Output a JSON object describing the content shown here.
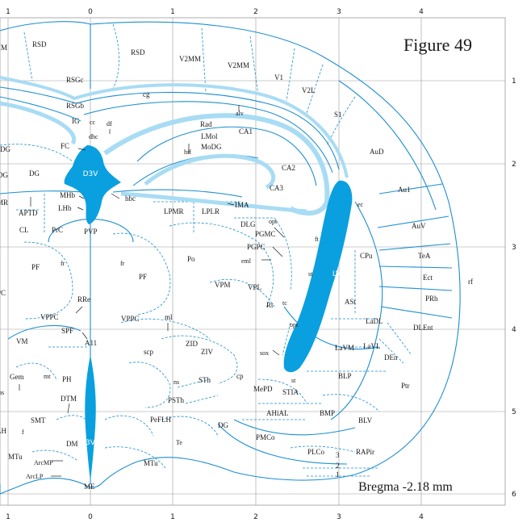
{
  "figure": {
    "title": "Figure 49",
    "bregma": "Bregma -2.18 mm"
  },
  "axes": {
    "top_ticks": [
      "1",
      "0",
      "1",
      "2",
      "3",
      "4"
    ],
    "bottom_ticks": [
      "1",
      "0",
      "1",
      "2",
      "3",
      "4"
    ],
    "right_ticks": [
      "1",
      "2",
      "3",
      "4",
      "5",
      "6"
    ]
  },
  "colors": {
    "ventricle": "#0aa0e0",
    "tract": "#a8dcf4",
    "outline": "#1c8fd0",
    "grid": "#9a9a9a"
  },
  "ventricles": {
    "d3v": "D3V",
    "lv": "LV",
    "v3": "3V"
  },
  "regions": {
    "cortex": [
      "IM",
      "RSD",
      "RSD",
      "V2MM",
      "V2MM",
      "V1",
      "V2L",
      "S1",
      "AuD",
      "Au1",
      "AuV",
      "TeA",
      "Ect",
      "PRh",
      "DLEnt",
      "rf"
    ],
    "hippocampus": [
      "RSGc",
      "cg",
      "RSGb",
      "IG",
      "cc",
      "df",
      "dhc",
      "alv",
      "Rad",
      "LMol",
      "MoDG",
      "CA1",
      "hif",
      "CA2",
      "CA3",
      "FC",
      "DG",
      "DG",
      "DG"
    ],
    "thalamus": [
      "MHb",
      "LHb",
      "hbc",
      "APTD",
      "CL",
      "PrC",
      "PVP",
      "PF",
      "fr",
      "fr",
      "PF",
      "Po",
      "LPMR",
      "LPLR",
      "IMA",
      "DLG",
      "opt",
      "PGMC",
      "PGPC",
      "ft",
      "eml",
      "VPM",
      "VPL",
      "Rt",
      "tc",
      "MR",
      "PC"
    ],
    "striatum": [
      "ec",
      "CPu",
      "st",
      "ASt",
      "LaDL",
      "LaVM",
      "LaVL",
      "DEn",
      "opt",
      "sox",
      "st",
      "BLP",
      "Ptr",
      "BMP",
      "BLV",
      "AHiAL",
      "STIA",
      "MePD",
      "cp",
      "PMCo",
      "PLCo",
      "RAPir",
      "3",
      "2",
      "1"
    ],
    "midbrain": [
      "RRe",
      "VPPC",
      "VPPC",
      "ml",
      "SPF",
      "A11",
      "VM",
      "scp",
      "ZID",
      "ZIV",
      "Gem",
      "mt",
      "PH",
      "ns",
      "ns",
      "STh",
      "PSTh",
      "DTM",
      "SMT",
      "f",
      "LH",
      "PeFLH",
      "DG",
      "DM",
      "Te",
      "MTu",
      "MTu",
      "ArcMP",
      "ArcLP",
      "ME"
    ]
  }
}
